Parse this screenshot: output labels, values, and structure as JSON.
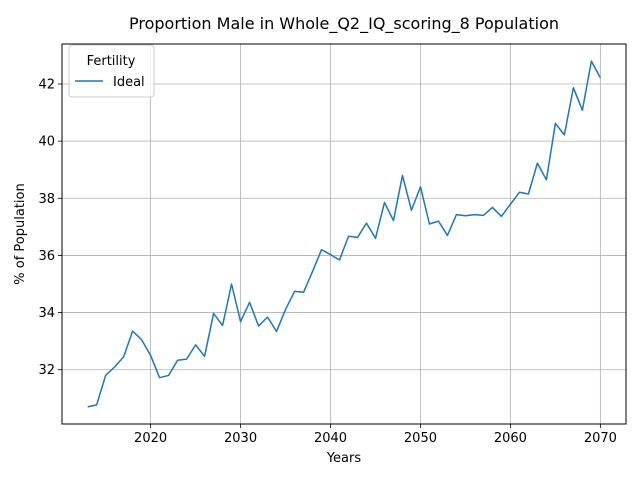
{
  "chart_data": {
    "type": "line",
    "title": "Proportion Male in Whole_Q2_IQ_scoring_8 Population",
    "xlabel": "Years",
    "ylabel": "% of Population",
    "xlim": [
      2010.15,
      2072.85
    ],
    "ylim": [
      30.1,
      43.4
    ],
    "xticks": [
      2020,
      2030,
      2040,
      2050,
      2060,
      2070
    ],
    "yticks": [
      32,
      34,
      36,
      38,
      40,
      42
    ],
    "grid": true,
    "legend": {
      "title": "Fertility",
      "placement": "top-left"
    },
    "series": [
      {
        "name": "Ideal",
        "color": "#1f77b4",
        "x": [
          2013,
          2014,
          2015,
          2016,
          2017,
          2018,
          2019,
          2020,
          2021,
          2022,
          2023,
          2024,
          2025,
          2026,
          2027,
          2028,
          2029,
          2030,
          2031,
          2032,
          2033,
          2034,
          2035,
          2036,
          2037,
          2038,
          2039,
          2040,
          2041,
          2042,
          2043,
          2044,
          2045,
          2046,
          2047,
          2048,
          2049,
          2050,
          2051,
          2052,
          2053,
          2054,
          2055,
          2056,
          2057,
          2058,
          2059,
          2060,
          2061,
          2062,
          2063,
          2064,
          2065,
          2066,
          2067,
          2068,
          2069,
          2070
        ],
        "y": [
          30.7,
          30.77,
          31.8,
          32.1,
          32.45,
          33.35,
          33.05,
          32.5,
          31.72,
          31.8,
          32.33,
          32.37,
          32.87,
          32.47,
          33.97,
          33.55,
          35.0,
          33.68,
          34.36,
          33.53,
          33.84,
          33.34,
          34.11,
          34.74,
          34.71,
          35.44,
          36.2,
          36.03,
          35.84,
          36.67,
          36.63,
          37.13,
          36.6,
          37.85,
          37.22,
          38.8,
          37.58,
          38.4,
          37.1,
          37.2,
          36.7,
          37.43,
          37.39,
          37.43,
          37.4,
          37.68,
          37.37,
          37.79,
          38.21,
          38.15,
          39.23,
          38.65,
          40.62,
          40.22,
          41.87,
          41.08,
          42.8,
          42.22
        ]
      }
    ]
  }
}
